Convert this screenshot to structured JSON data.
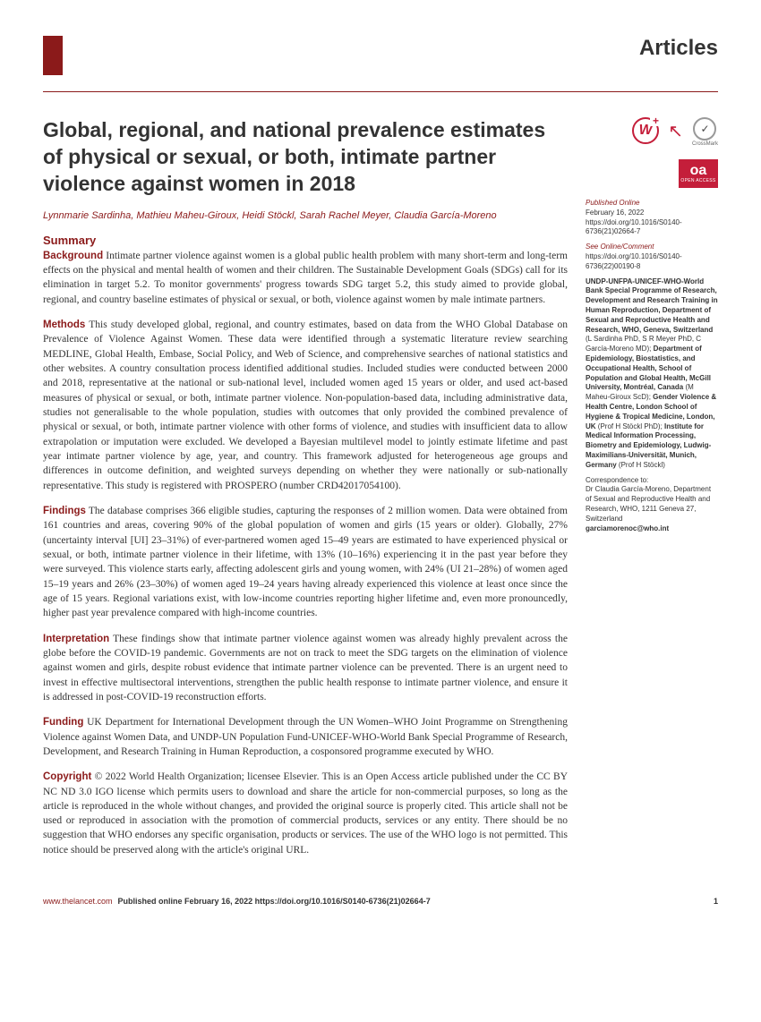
{
  "header": {
    "section_label": "Articles"
  },
  "title": "Global, regional, and national prevalence estimates of physical or sexual, or both, intimate partner violence against women in 2018",
  "authors": "Lynnmarie Sardinha, Mathieu Maheu-Giroux, Heidi Stöckl, Sarah Rachel Meyer, Claudia García-Moreno",
  "summary_heading": "Summary",
  "sections": {
    "background": {
      "label": "Background",
      "text": "Intimate partner violence against women is a global public health problem with many short-term and long-term effects on the physical and mental health of women and their children. The Sustainable Development Goals (SDGs) call for its elimination in target 5.2. To monitor governments' progress towards SDG target 5.2, this study aimed to provide global, regional, and country baseline estimates of physical or sexual, or both, violence against women by male intimate partners."
    },
    "methods": {
      "label": "Methods",
      "text": "This study developed global, regional, and country estimates, based on data from the WHO Global Database on Prevalence of Violence Against Women. These data were identified through a systematic literature review searching MEDLINE, Global Health, Embase, Social Policy, and Web of Science, and comprehensive searches of national statistics and other websites. A country consultation process identified additional studies. Included studies were conducted between 2000 and 2018, representative at the national or sub-national level, included women aged 15 years or older, and used act-based measures of physical or sexual, or both, intimate partner violence. Non-population-based data, including administrative data, studies not generalisable to the whole population, studies with outcomes that only provided the combined prevalence of physical or sexual, or both, intimate partner violence with other forms of violence, and studies with insufficient data to allow extrapolation or imputation were excluded. We developed a Bayesian multilevel model to jointly estimate lifetime and past year intimate partner violence by age, year, and country. This framework adjusted for heterogeneous age groups and differences in outcome definition, and weighted surveys depending on whether they were nationally or sub-nationally representative. This study is registered with PROSPERO (number CRD42017054100)."
    },
    "findings": {
      "label": "Findings",
      "text": "The database comprises 366 eligible studies, capturing the responses of 2 million women. Data were obtained from 161 countries and areas, covering 90% of the global population of women and girls (15 years or older). Globally, 27% (uncertainty interval [UI] 23–31%) of ever-partnered women aged 15–49 years are estimated to have experienced physical or sexual, or both, intimate partner violence in their lifetime, with 13% (10–16%) experiencing it in the past year before they were surveyed. This violence starts early, affecting adolescent girls and young women, with 24% (UI 21–28%) of women aged 15–19 years and 26% (23–30%) of women aged 19–24 years having already experienced this violence at least once since the age of 15 years. Regional variations exist, with low-income countries reporting higher lifetime and, even more pronouncedly, higher past year prevalence compared with high-income countries."
    },
    "interpretation": {
      "label": "Interpretation",
      "text": "These findings show that intimate partner violence against women was already highly prevalent across the globe before the COVID-19 pandemic. Governments are not on track to meet the SDG targets on the elimination of violence against women and girls, despite robust evidence that intimate partner violence can be prevented. There is an urgent need to invest in effective multisectoral interventions, strengthen the public health response to intimate partner violence, and ensure it is addressed in post-COVID-19 reconstruction efforts."
    },
    "funding": {
      "label": "Funding",
      "text": "UK Department for International Development through the UN Women–WHO Joint Programme on Strengthening Violence against Women Data, and UNDP-UN Population Fund-UNICEF-WHO-World Bank Special Programme of Research, Development, and Research Training in Human Reproduction, a cosponsored programme executed by WHO."
    },
    "copyright": {
      "label": "Copyright",
      "text": "© 2022 World Health Organization; licensee Elsevier. This is an Open Access article published under the CC BY NC ND 3.0 IGO license which permits users to download and share the article for non-commercial purposes, so long as the article is reproduced in the whole without changes, and provided the original source is properly cited. This article shall not be used or reproduced in association with the promotion of commercial products, services or any entity. There should be no suggestion that WHO endorses any specific organisation, products or services. The use of the WHO logo is not permitted. This notice should be preserved along with the article's original URL."
    }
  },
  "sidebar": {
    "oa_label": "oa",
    "oa_sub": "OPEN ACCESS",
    "crossmark_label": "CrossMark",
    "published_label": "Published Online",
    "published_date": "February 16, 2022",
    "doi1": "https://doi.org/10.1016/S0140-6736(21)02664-7",
    "see_label": "See Online/Comment",
    "doi2": "https://doi.org/10.1016/S0140-6736(22)00190-8",
    "affiliations": "UNDP-UNFPA-UNICEF-WHO-World Bank Special Programme of Research, Development and Research Training in Human Reproduction, Department of Sexual and Reproductive Health and Research, WHO, Geneva, Switzerland",
    "affil_people1": "(L Sardinha PhD, S R Meyer PhD, C García-Moreno MD);",
    "affil2": "Department of Epidemiology, Biostatistics, and Occupational Health, School of Population and Global Health, McGill University, Montréal, Canada",
    "affil_people2": "(M Maheu-Giroux ScD);",
    "affil3_bold": "Gender Violence & Health Centre, London School of Hygiene & Tropical Medicine, London, UK",
    "affil_people3": "(Prof H Stöckl PhD);",
    "affil4": "Institute for Medical Information Processing, Biometry and Epidemiology, Ludwig-Maximilians-Universität, Munich, Germany",
    "affil_people4": "(Prof H Stöckl)",
    "corr_label": "Correspondence to:",
    "corr_text": "Dr Claudia García-Moreno, Department of Sexual and Reproductive Health and Research, WHO, 1211 Geneva 27, Switzerland",
    "corr_email": "garciamorenoc@who.int"
  },
  "footer": {
    "url": "www.thelancet.com",
    "pub_info": "Published online February 16, 2022   https://doi.org/10.1016/S0140-6736(21)02664-7",
    "page": "1"
  },
  "colors": {
    "accent": "#8b1a1a",
    "red_bright": "#c41e3a",
    "text": "#333333",
    "background": "#ffffff"
  }
}
